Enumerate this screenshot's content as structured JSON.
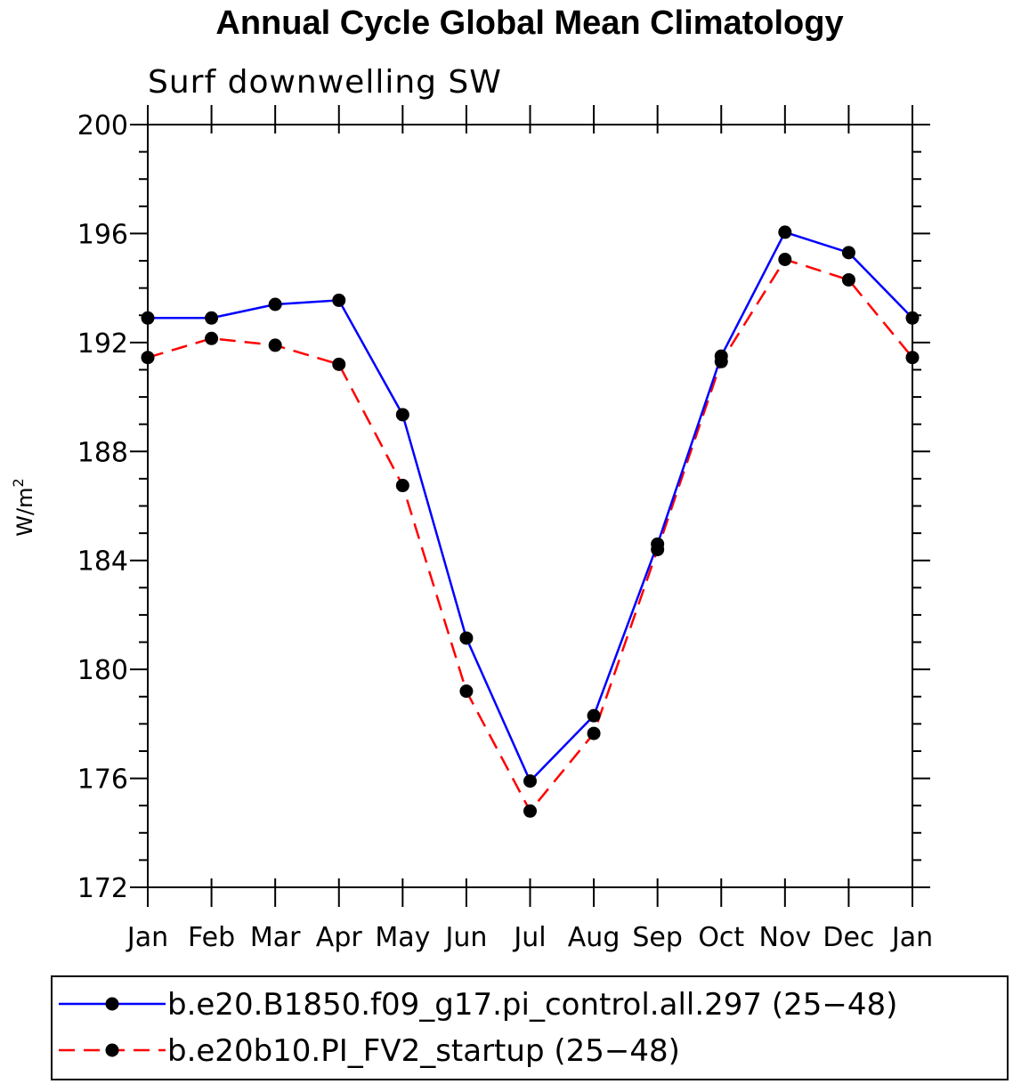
{
  "chart_data": {
    "type": "line",
    "title": "Annual Cycle Global Mean Climatology",
    "subtitle": "Surf downwelling SW",
    "ylabel": "W/m",
    "ylabel_sup": "2",
    "xlabel": "",
    "categories": [
      "Jan",
      "Feb",
      "Mar",
      "Apr",
      "May",
      "Jun",
      "Jul",
      "Aug",
      "Sep",
      "Oct",
      "Nov",
      "Dec",
      "Jan"
    ],
    "ylim": [
      172,
      200
    ],
    "yticks": [
      172,
      176,
      180,
      184,
      188,
      192,
      196,
      200
    ],
    "yminor_step": 1,
    "series": [
      {
        "name": "b.e20.B1850.f09_g17.pi_control.all.297 (25−48)",
        "color": "#0000ff",
        "dash": "solid",
        "values": [
          192.9,
          192.9,
          193.4,
          193.55,
          189.35,
          181.15,
          175.9,
          178.3,
          184.6,
          191.5,
          196.05,
          195.3,
          192.9
        ]
      },
      {
        "name": "b.e20b10.PI_FV2_startup (25−48)",
        "color": "#ff0000",
        "dash": "dashed",
        "values": [
          191.45,
          192.15,
          191.9,
          191.2,
          186.75,
          179.2,
          174.8,
          177.65,
          184.4,
          191.3,
          195.05,
          194.3,
          191.45
        ]
      }
    ],
    "legend_position": "bottom"
  }
}
